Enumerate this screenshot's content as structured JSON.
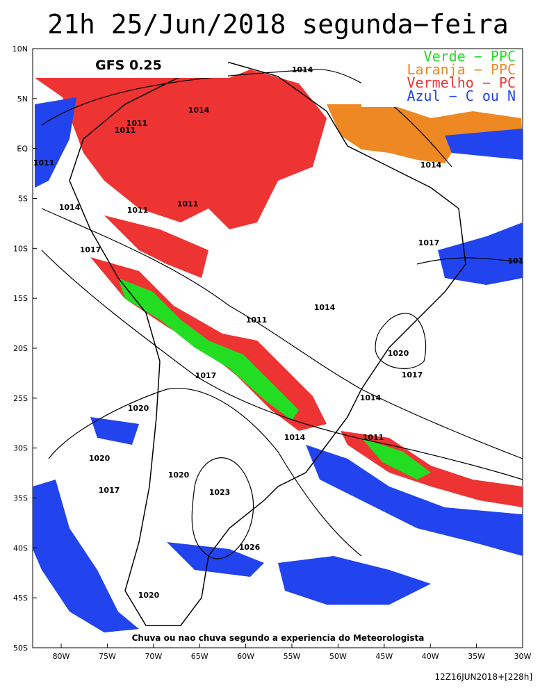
{
  "title": "21h 25/Jun/2018 segunda−feira",
  "model_label": "GFS 0.25",
  "legend": [
    {
      "text": "Verde − PPC",
      "color": "#22dd22"
    },
    {
      "text": "Laranja − PPC",
      "color": "#ee8822"
    },
    {
      "text": "Vermelho − PC",
      "color": "#ee3333"
    },
    {
      "text": "Azul − C ou N",
      "color": "#2244ee"
    }
  ],
  "lat_labels": [
    "10N",
    "5N",
    "EQ",
    "5S",
    "10S",
    "15S",
    "20S",
    "25S",
    "30S",
    "35S",
    "40S",
    "45S",
    "50S"
  ],
  "lon_labels": [
    "80W",
    "75W",
    "70W",
    "65W",
    "60W",
    "55W",
    "50W",
    "45W",
    "40W",
    "35W",
    "30W"
  ],
  "isobar_labels": [
    "1014",
    "1014",
    "1011",
    "1011",
    "1011",
    "1014",
    "1011",
    "1014",
    "1011",
    "1017",
    "1017",
    "101",
    "1014",
    "1011",
    "1020",
    "1017",
    "1017",
    "1014",
    "1020",
    "1014",
    "1011",
    "1020",
    "1020",
    "1017",
    "1023",
    "1026",
    "1020"
  ],
  "caption": "Chuva ou nao chuva segundo a experiencia do Meteorologista",
  "footer": "12Z16JUN2018+[228h]"
}
